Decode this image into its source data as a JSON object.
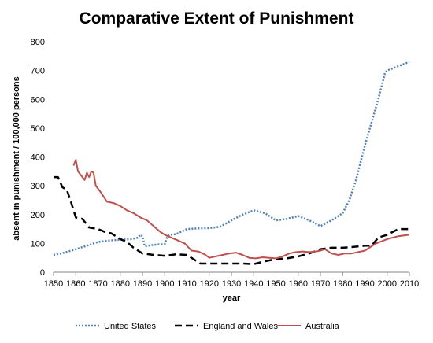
{
  "chart_data": {
    "type": "line",
    "title": "Comparative Extent of Punishment",
    "xlabel": "year",
    "ylabel": "absent in punishment / 100,000 persons",
    "xlim": [
      1850,
      2010
    ],
    "ylim": [
      0,
      800
    ],
    "x_ticks": [
      1850,
      1860,
      1870,
      1880,
      1890,
      1900,
      1910,
      1920,
      1930,
      1940,
      1950,
      1960,
      1970,
      1980,
      1990,
      2000,
      2010
    ],
    "y_ticks": [
      0,
      100,
      200,
      300,
      400,
      500,
      600,
      700,
      800
    ],
    "grid": false,
    "legend_position": "bottom",
    "series": [
      {
        "name": "United States",
        "color": "#4f81bd",
        "style": "dotted",
        "points": [
          [
            1850,
            60
          ],
          [
            1855,
            68
          ],
          [
            1860,
            80
          ],
          [
            1865,
            92
          ],
          [
            1870,
            105
          ],
          [
            1875,
            110
          ],
          [
            1880,
            113
          ],
          [
            1885,
            115
          ],
          [
            1888,
            120
          ],
          [
            1889,
            130
          ],
          [
            1890,
            125
          ],
          [
            1891,
            90
          ],
          [
            1895,
            95
          ],
          [
            1900,
            98
          ],
          [
            1901,
            120
          ],
          [
            1902,
            130
          ],
          [
            1905,
            132
          ],
          [
            1910,
            150
          ],
          [
            1915,
            152
          ],
          [
            1920,
            153
          ],
          [
            1925,
            158
          ],
          [
            1930,
            180
          ],
          [
            1935,
            200
          ],
          [
            1940,
            215
          ],
          [
            1945,
            205
          ],
          [
            1950,
            180
          ],
          [
            1955,
            185
          ],
          [
            1960,
            195
          ],
          [
            1965,
            180
          ],
          [
            1970,
            160
          ],
          [
            1975,
            180
          ],
          [
            1980,
            205
          ],
          [
            1983,
            250
          ],
          [
            1986,
            320
          ],
          [
            1990,
            440
          ],
          [
            1993,
            520
          ],
          [
            1996,
            600
          ],
          [
            1999,
            690
          ],
          [
            2000,
            700
          ],
          [
            2005,
            715
          ],
          [
            2010,
            730
          ]
        ]
      },
      {
        "name": "England and Wales",
        "color": "#000000",
        "style": "dashed",
        "points": [
          [
            1850,
            330
          ],
          [
            1852,
            330
          ],
          [
            1854,
            295
          ],
          [
            1856,
            285
          ],
          [
            1858,
            240
          ],
          [
            1860,
            190
          ],
          [
            1863,
            185
          ],
          [
            1866,
            155
          ],
          [
            1870,
            150
          ],
          [
            1873,
            140
          ],
          [
            1876,
            135
          ],
          [
            1880,
            115
          ],
          [
            1883,
            105
          ],
          [
            1886,
            85
          ],
          [
            1890,
            65
          ],
          [
            1895,
            60
          ],
          [
            1900,
            57
          ],
          [
            1905,
            62
          ],
          [
            1910,
            60
          ],
          [
            1913,
            45
          ],
          [
            1916,
            30
          ],
          [
            1920,
            30
          ],
          [
            1925,
            30
          ],
          [
            1930,
            30
          ],
          [
            1935,
            30
          ],
          [
            1940,
            28
          ],
          [
            1945,
            38
          ],
          [
            1950,
            45
          ],
          [
            1955,
            48
          ],
          [
            1960,
            55
          ],
          [
            1965,
            65
          ],
          [
            1970,
            80
          ],
          [
            1975,
            85
          ],
          [
            1980,
            85
          ],
          [
            1985,
            88
          ],
          [
            1990,
            92
          ],
          [
            1993,
            92
          ],
          [
            1996,
            120
          ],
          [
            2000,
            130
          ],
          [
            2005,
            150
          ],
          [
            2010,
            150
          ]
        ]
      },
      {
        "name": "Australia",
        "color": "#c0504d",
        "style": "solid",
        "points": [
          [
            1859,
            370
          ],
          [
            1860,
            390
          ],
          [
            1861,
            350
          ],
          [
            1862,
            340
          ],
          [
            1864,
            320
          ],
          [
            1865,
            345
          ],
          [
            1866,
            330
          ],
          [
            1867,
            350
          ],
          [
            1868,
            345
          ],
          [
            1869,
            300
          ],
          [
            1871,
            280
          ],
          [
            1874,
            245
          ],
          [
            1877,
            240
          ],
          [
            1880,
            230
          ],
          [
            1883,
            215
          ],
          [
            1886,
            205
          ],
          [
            1889,
            190
          ],
          [
            1892,
            180
          ],
          [
            1895,
            160
          ],
          [
            1898,
            140
          ],
          [
            1900,
            130
          ],
          [
            1903,
            120
          ],
          [
            1906,
            110
          ],
          [
            1909,
            100
          ],
          [
            1912,
            75
          ],
          [
            1915,
            72
          ],
          [
            1918,
            62
          ],
          [
            1920,
            50
          ],
          [
            1923,
            55
          ],
          [
            1926,
            60
          ],
          [
            1929,
            65
          ],
          [
            1932,
            68
          ],
          [
            1935,
            60
          ],
          [
            1938,
            50
          ],
          [
            1941,
            48
          ],
          [
            1944,
            52
          ],
          [
            1947,
            50
          ],
          [
            1950,
            48
          ],
          [
            1953,
            55
          ],
          [
            1956,
            65
          ],
          [
            1959,
            70
          ],
          [
            1962,
            72
          ],
          [
            1965,
            70
          ],
          [
            1968,
            72
          ],
          [
            1970,
            75
          ],
          [
            1972,
            80
          ],
          [
            1975,
            65
          ],
          [
            1978,
            60
          ],
          [
            1981,
            65
          ],
          [
            1984,
            65
          ],
          [
            1987,
            70
          ],
          [
            1990,
            75
          ],
          [
            1995,
            100
          ],
          [
            2000,
            115
          ],
          [
            2005,
            125
          ],
          [
            2010,
            130
          ]
        ]
      }
    ]
  }
}
